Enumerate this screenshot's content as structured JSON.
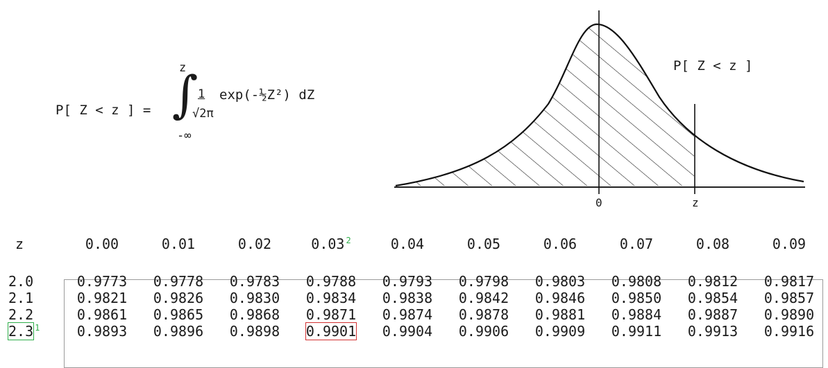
{
  "formula": {
    "lhs": "P[ Z < z ] =",
    "upper_limit": "z",
    "lower_limit": "-∞",
    "numerator": "1",
    "denominator": "√2π",
    "integrand": "exp(-½Z²) dZ"
  },
  "curve": {
    "label": "P[ Z < z ]",
    "axis_zero": "0",
    "axis_z": "z"
  },
  "table": {
    "z_header": "z",
    "columns": [
      "0.00",
      "0.01",
      "0.02",
      "0.03",
      "0.04",
      "0.05",
      "0.06",
      "0.07",
      "0.08",
      "0.09"
    ],
    "rows": [
      {
        "z": "2.0",
        "values": [
          "0.9773",
          "0.9778",
          "0.9783",
          "0.9788",
          "0.9793",
          "0.9798",
          "0.9803",
          "0.9808",
          "0.9812",
          "0.9817"
        ]
      },
      {
        "z": "2.1",
        "values": [
          "0.9821",
          "0.9826",
          "0.9830",
          "0.9834",
          "0.9838",
          "0.9842",
          "0.9846",
          "0.9850",
          "0.9854",
          "0.9857"
        ]
      },
      {
        "z": "2.2",
        "values": [
          "0.9861",
          "0.9865",
          "0.9868",
          "0.9871",
          "0.9874",
          "0.9878",
          "0.9881",
          "0.9884",
          "0.9887",
          "0.9890"
        ]
      },
      {
        "z": "2.3",
        "values": [
          "0.9893",
          "0.9896",
          "0.9898",
          "0.9901",
          "0.9904",
          "0.9906",
          "0.9909",
          "0.9911",
          "0.9913",
          "0.9916"
        ]
      }
    ],
    "marker_row": "1",
    "marker_col": "2"
  },
  "colors": {
    "highlight_result": "#d23030",
    "highlight_lookup": "#2fae4a"
  }
}
